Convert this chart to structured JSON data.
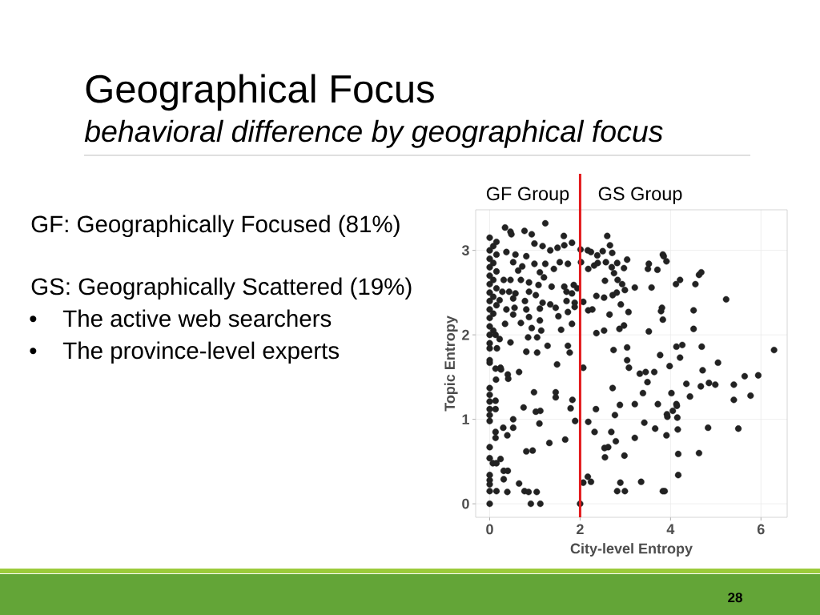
{
  "chart_data": {
    "type": "scatter",
    "title": "Geographical Focus",
    "subtitle": "behavioral difference by geographical focus",
    "xlabel": "City-level Entropy",
    "ylabel": "Topic Entropy",
    "annotations": [
      "GF Group",
      "GS Group",
      "GF: Geographically Focused (81%)",
      "GS: Geographically Scattered (19%)",
      "•",
      "The active web searchers",
      "•",
      "The province-level experts",
      "28"
    ],
    "xlim": [
      -0.31,
      6.58
    ],
    "ylim": [
      -0.16,
      3.48
    ],
    "xticks": [
      0,
      2,
      4,
      6
    ],
    "yticks": [
      0,
      1,
      2,
      3
    ],
    "grid": true,
    "marker": "circle",
    "color": "#222222",
    "ref_lines": [
      {
        "axis": "x",
        "value": 2,
        "color": "#e31a1c"
      }
    ],
    "x": [
      2.6,
      2.66,
      2.17,
      2.24,
      2.5,
      2.71,
      2.38,
      2.01,
      2.02,
      2.57,
      2.39,
      2.31,
      2.82,
      3.04,
      2.18,
      2.7,
      2.97,
      2.75,
      3.52,
      3.5,
      3.71,
      3.83,
      3.85,
      3.91,
      2.55,
      2.83,
      2.93,
      2.99,
      3.21,
      3.58,
      4.12,
      4.21,
      4.55,
      4.63,
      4.68,
      5.23,
      2.07,
      2.36,
      2.53,
      2.72,
      2.81,
      2.9,
      2.18,
      2.27,
      2.65,
      3.07,
      3.81,
      3.79,
      3.83,
      4.51,
      4.51,
      2.36,
      2.53,
      2.87,
      2.97,
      3.52,
      2.74,
      3.04,
      3.77,
      4.13,
      4.26,
      4.69,
      6.29,
      3.04,
      3.08,
      4.21,
      3.98,
      5.05,
      4.71,
      3.32,
      3.45,
      3.64,
      3.49,
      5.64,
      5.94,
      4.35,
      4.67,
      4.85,
      4.99,
      5.4,
      2.72,
      3.39,
      4.02,
      4.43,
      5.4,
      5.77,
      2.88,
      3.21,
      3.72,
      4.13,
      4.14,
      4.05,
      2.35,
      2.77,
      3.92,
      3.93,
      4.15,
      2.18,
      3.42,
      2.32,
      2.69,
      2.79,
      3.66,
      4.16,
      4.83,
      5.5,
      3.21,
      3.91,
      2.54,
      2.62,
      2.55,
      2.98,
      4.17,
      4.63,
      2.17,
      2.07,
      2.24,
      2.89,
      2.82,
      2.99,
      3.35,
      3.83,
      3.87,
      4.17,
      2.0,
      2.07,
      0.34,
      0.46,
      0.48,
      0.77,
      0.93,
      1.23,
      1.64,
      1.82,
      1.65,
      1.5,
      0.99,
      1.17,
      1.34,
      0.37,
      0.57,
      0.81,
      0.52,
      0.72,
      0.99,
      1.23,
      1.42,
      1.55,
      1.73,
      0.63,
      1.11,
      1.2,
      0.31,
      0.46,
      0.69,
      0.87,
      1.08,
      1.37,
      1.65,
      1.86,
      1.94,
      0.28,
      0.43,
      0.57,
      0.87,
      1.02,
      1.7,
      1.82,
      0.22,
      0.52,
      0.78,
      1.17,
      1.34,
      1.7,
      1.88,
      0.37,
      0.55,
      0.81,
      1.11,
      1.46,
      1.73,
      1.88,
      0.52,
      0.87,
      1.52,
      0.34,
      0.69,
      1.11,
      1.82,
      0.93,
      1.14,
      1.58,
      0.13,
      0.22,
      0.85,
      1.05,
      1.28,
      0.46,
      1.73,
      0,
      0.16,
      0.81,
      1.05,
      1.77,
      0,
      0,
      0.13,
      0.24,
      0.25,
      0.4,
      0.41,
      0.65,
      1.49,
      0.14,
      0,
      0,
      0.98,
      1.46,
      1.46,
      1.83,
      0,
      0.13,
      0,
      0.13,
      0.75,
      1.02,
      1.12,
      1.79,
      0,
      0,
      0.52,
      0.52,
      0.3,
      0.13,
      0.13,
      0.39,
      1.1,
      1.89,
      1.32,
      1.67,
      0,
      0.81,
      0.95,
      0,
      0.07,
      0.15,
      0.24,
      0.31,
      0.4,
      0.31,
      0,
      0,
      0,
      0.65,
      0,
      0.15,
      0.39,
      0.77,
      0.86,
      1.04,
      0,
      0.91,
      1.12,
      0,
      0,
      0,
      0,
      0,
      0,
      0,
      0,
      0,
      0,
      0,
      0,
      0,
      0.08,
      0.08,
      0.08,
      0.08,
      0.08,
      0.08,
      0.15,
      0.15,
      0.15,
      0.15,
      0.15
    ],
    "values": [
      3.17,
      3.06,
      3.0,
      2.98,
      2.99,
      2.97,
      2.94,
      3.01,
      2.86,
      2.86,
      2.85,
      2.82,
      2.85,
      2.89,
      2.78,
      2.8,
      2.79,
      2.73,
      2.84,
      2.78,
      2.77,
      2.95,
      2.93,
      2.87,
      2.64,
      2.65,
      2.6,
      2.53,
      2.56,
      2.56,
      2.6,
      2.65,
      2.6,
      2.71,
      2.74,
      2.42,
      2.39,
      2.46,
      2.44,
      2.47,
      2.5,
      2.36,
      2.29,
      2.3,
      2.24,
      2.27,
      2.32,
      2.28,
      2.18,
      2.29,
      2.07,
      2.02,
      2.05,
      2.07,
      2.11,
      2.04,
      1.82,
      1.85,
      1.76,
      1.86,
      1.88,
      1.86,
      1.82,
      1.7,
      1.61,
      1.73,
      1.63,
      1.67,
      1.58,
      1.54,
      1.56,
      1.56,
      1.44,
      1.51,
      1.52,
      1.42,
      1.39,
      1.43,
      1.41,
      1.41,
      1.37,
      1.31,
      1.31,
      1.27,
      1.23,
      1.28,
      1.17,
      1.18,
      1.18,
      1.18,
      1.16,
      1.1,
      1.12,
      1.05,
      1.06,
      1.03,
      1.02,
      0.97,
      0.96,
      0.85,
      0.85,
      0.74,
      0.89,
      0.88,
      0.9,
      0.89,
      0.78,
      0.81,
      0.66,
      0.67,
      0.55,
      0.57,
      0.59,
      0.6,
      0.32,
      0.25,
      0.26,
      0.25,
      0.15,
      0.15,
      0.26,
      0.15,
      0.15,
      0.34,
      0,
      1.61,
      3.27,
      3.22,
      3.19,
      3.23,
      3.19,
      3.32,
      3.17,
      3.09,
      3.06,
      3.03,
      3.08,
      3.05,
      3.0,
      2.98,
      2.95,
      2.93,
      2.86,
      2.81,
      2.84,
      2.84,
      2.78,
      2.86,
      2.84,
      2.76,
      2.74,
      2.68,
      2.65,
      2.65,
      2.65,
      2.62,
      2.59,
      2.57,
      2.57,
      2.59,
      2.55,
      2.51,
      2.51,
      2.49,
      2.51,
      2.47,
      2.51,
      2.49,
      2.41,
      2.43,
      2.4,
      2.38,
      2.36,
      2.4,
      2.38,
      2.3,
      2.32,
      2.3,
      2.31,
      2.32,
      2.27,
      2.33,
      2.24,
      2.21,
      2.22,
      2.13,
      2.14,
      2.17,
      2.13,
      2.08,
      2.05,
      2.06,
      2.0,
      1.95,
      1.97,
      1.97,
      1.87,
      1.91,
      1.87,
      1.84,
      1.84,
      1.8,
      1.79,
      1.79,
      1.7,
      1.67,
      1.6,
      1.61,
      1.59,
      1.53,
      1.48,
      1.56,
      1.65,
      1.47,
      1.37,
      1.29,
      1.32,
      1.32,
      1.26,
      1.23,
      1.21,
      1.22,
      1.12,
      1.12,
      1.14,
      1.09,
      1.1,
      1.13,
      1.05,
      0.98,
      1.0,
      0.9,
      0.9,
      0.85,
      0.78,
      0.81,
      0.95,
      0.98,
      0.72,
      0.76,
      0.67,
      0.62,
      0.63,
      0.54,
      0.48,
      0.48,
      0.53,
      0.39,
      0.39,
      0.29,
      0.34,
      0.28,
      0.23,
      0.24,
      0.15,
      0.15,
      0.14,
      0.15,
      0.14,
      0.14,
      0,
      0,
      0,
      3.15,
      3.0,
      2.9,
      2.8,
      2.7,
      2.6,
      2.5,
      2.4,
      2.3,
      2.2,
      2.1,
      2.0,
      1.9,
      3.05,
      2.85,
      2.65,
      2.45,
      2.25,
      2.05,
      2.95,
      2.75,
      2.55,
      2.35,
      3.1
    ]
  }
}
